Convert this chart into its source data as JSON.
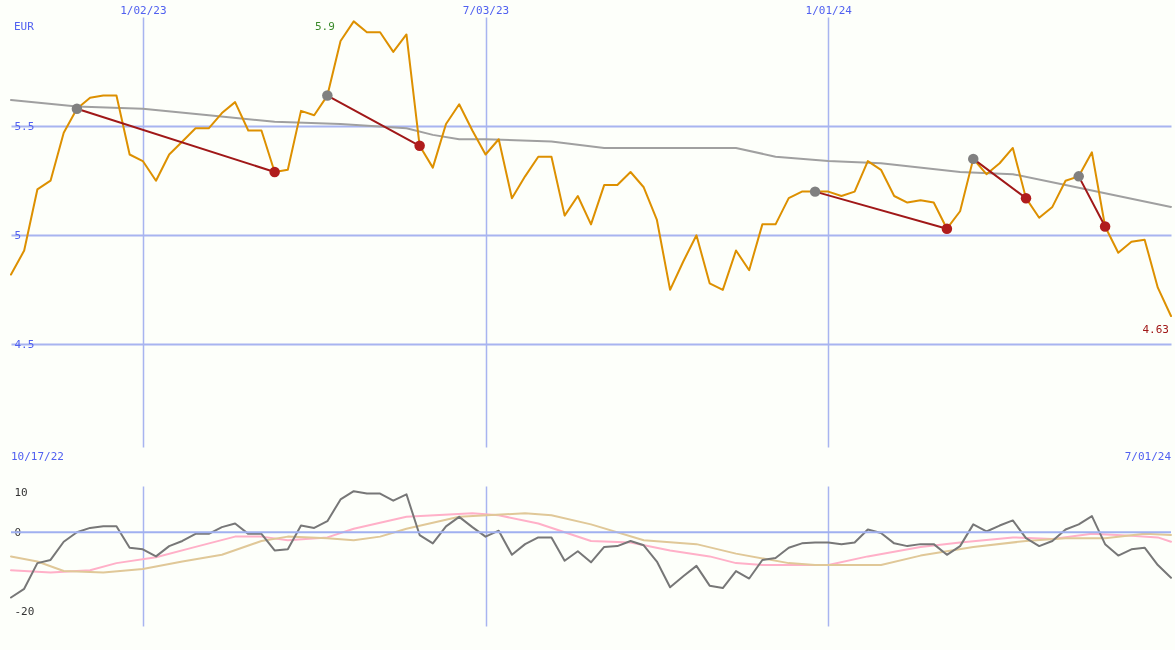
{
  "chart_data": [
    {
      "type": "line",
      "ylabel": "EUR",
      "xlim": [
        "2022-10-24",
        "2024-07-01"
      ],
      "ylim": [
        4.03,
        6.0
      ],
      "yticks": [
        4.5,
        5,
        5.5
      ],
      "xticks": [
        {
          "value": "2023-01-02",
          "label": "1/02/23"
        },
        {
          "value": "2023-07-03",
          "label": "7/03/23"
        },
        {
          "value": "2024-01-01",
          "label": "1/01/24"
        }
      ],
      "grid": true,
      "annotations": [
        "10/17/22",
        "7/01/24",
        "5.9",
        {
          "text": "4.63",
          "x": "2024-07-01",
          "y": 4.63
        }
      ],
      "x": [
        "2022-10-24",
        "2022-10-31",
        "2022-11-07",
        "2022-11-14",
        "2022-11-21",
        "2022-11-28",
        "2022-12-05",
        "2022-12-12",
        "2022-12-19",
        "2022-12-26",
        "2023-01-02",
        "2023-01-09",
        "2023-01-16",
        "2023-01-23",
        "2023-01-30",
        "2023-02-06",
        "2023-02-13",
        "2023-02-20",
        "2023-02-27",
        "2023-03-06",
        "2023-03-13",
        "2023-03-20",
        "2023-03-27",
        "2023-04-03",
        "2023-04-10",
        "2023-04-17",
        "2023-04-24",
        "2023-05-01",
        "2023-05-08",
        "2023-05-15",
        "2023-05-22",
        "2023-05-29",
        "2023-06-05",
        "2023-06-12",
        "2023-06-19",
        "2023-06-26",
        "2023-07-03",
        "2023-07-10",
        "2023-07-17",
        "2023-07-24",
        "2023-07-31",
        "2023-08-07",
        "2023-08-14",
        "2023-08-21",
        "2023-08-28",
        "2023-09-04",
        "2023-09-11",
        "2023-09-18",
        "2023-09-25",
        "2023-10-02",
        "2023-10-09",
        "2023-10-16",
        "2023-10-23",
        "2023-10-30",
        "2023-11-06",
        "2023-11-13",
        "2023-11-20",
        "2023-11-27",
        "2023-12-04",
        "2023-12-11",
        "2023-12-18",
        "2023-12-25",
        "2024-01-01",
        "2024-01-08",
        "2024-01-15",
        "2024-01-22",
        "2024-01-29",
        "2024-02-05",
        "2024-02-12",
        "2024-02-19",
        "2024-02-26",
        "2024-03-04",
        "2024-03-11",
        "2024-03-18",
        "2024-03-25",
        "2024-04-01",
        "2024-04-08",
        "2024-04-15",
        "2024-04-22",
        "2024-04-29",
        "2024-05-06",
        "2024-05-13",
        "2024-05-20",
        "2024-05-27",
        "2024-06-03",
        "2024-06-10",
        "2024-06-17",
        "2024-06-24",
        "2024-07-01"
      ],
      "series": [
        {
          "color": "#a0a0a0",
          "x": [
            "2022-10-24",
            "2022-11-28",
            "2023-01-02",
            "2023-02-06",
            "2023-03-13",
            "2023-04-17",
            "2023-05-22",
            "2023-06-05",
            "2023-06-19",
            "2023-07-03",
            "2023-08-07",
            "2023-09-04",
            "2023-10-09",
            "2023-11-13",
            "2023-12-04",
            "2024-01-01",
            "2024-01-29",
            "2024-03-11",
            "2024-04-08",
            "2024-05-06",
            "2024-06-03",
            "2024-07-01"
          ],
          "values": [
            5.62,
            5.59,
            5.58,
            5.55,
            5.52,
            5.51,
            5.49,
            5.46,
            5.44,
            5.44,
            5.43,
            5.4,
            5.4,
            5.4,
            5.36,
            5.34,
            5.33,
            5.29,
            5.28,
            5.23,
            5.18,
            5.13
          ]
        },
        {
          "color": "#dd9000",
          "values": [
            4.82,
            4.93,
            5.21,
            5.25,
            5.47,
            5.58,
            5.63,
            5.64,
            5.64,
            5.37,
            5.34,
            5.25,
            5.37,
            5.43,
            5.49,
            5.49,
            5.56,
            5.61,
            5.48,
            5.48,
            5.29,
            5.3,
            5.57,
            5.55,
            5.64,
            5.89,
            5.98,
            5.93,
            5.93,
            5.84,
            5.92,
            5.41,
            5.31,
            5.51,
            5.6,
            5.48,
            5.37,
            5.44,
            5.17,
            5.27,
            5.36,
            5.36,
            5.09,
            5.18,
            5.05,
            5.23,
            5.23,
            5.29,
            5.22,
            5.07,
            4.75,
            4.88,
            5.0,
            4.78,
            4.75,
            4.93,
            4.84,
            5.05,
            5.05,
            5.17,
            5.2,
            5.2,
            5.2,
            5.18,
            5.2,
            5.34,
            5.3,
            5.18,
            5.15,
            5.16,
            5.15,
            5.03,
            5.11,
            5.35,
            5.28,
            5.33,
            5.4,
            5.17,
            5.08,
            5.13,
            5.25,
            5.27,
            5.38,
            5.04,
            4.92,
            4.97,
            4.98,
            4.76,
            4.63
          ]
        },
        {
          "color": "#a01818",
          "x": [
            "2022-11-28",
            "2023-03-13"
          ],
          "values": [
            5.58,
            5.29
          ]
        },
        {
          "color": "#a01818",
          "x": [
            "2023-04-10",
            "2023-05-29"
          ],
          "values": [
            5.64,
            5.41
          ]
        },
        {
          "color": "#a01818",
          "x": [
            "2023-12-25",
            "2024-03-04"
          ],
          "values": [
            5.2,
            5.03
          ]
        },
        {
          "color": "#a01818",
          "x": [
            "2024-03-18",
            "2024-04-15"
          ],
          "values": [
            5.35,
            5.17
          ]
        },
        {
          "color": "#a01818",
          "x": [
            "2024-05-13",
            "2024-05-27"
          ],
          "values": [
            5.27,
            5.04
          ]
        },
        {
          "type": "scatter",
          "color": "#808080",
          "x": [
            "2022-11-28",
            "2023-04-10",
            "2023-12-25",
            "2024-03-18",
            "2024-05-13"
          ],
          "values": [
            5.58,
            5.64,
            5.2,
            5.35,
            5.27
          ]
        },
        {
          "type": "scatter",
          "color": "#b01c1c",
          "x": [
            "2023-03-13",
            "2023-05-29",
            "2024-03-04",
            "2024-04-15",
            "2024-05-27"
          ],
          "values": [
            5.29,
            5.41,
            5.03,
            5.17,
            5.04
          ]
        }
      ]
    },
    {
      "type": "line",
      "xlim": [
        "2022-10-24",
        "2024-07-01"
      ],
      "ylim": [
        -23.7,
        11.7
      ],
      "yticks": [
        -20,
        0,
        10
      ],
      "xticks": [
        {
          "value": "2023-01-02",
          "label": null
        },
        {
          "value": "2023-07-03",
          "label": null
        },
        {
          "value": "2024-01-01",
          "label": null
        }
      ],
      "grid": "x",
      "tick_labels": "y",
      "ref_lines": [
        {
          "axis": "y",
          "value": 0,
          "color": "#a0b0f0"
        }
      ],
      "x": [
        "2022-10-24",
        "2022-10-31",
        "2022-11-07",
        "2022-11-14",
        "2022-11-21",
        "2022-11-28",
        "2022-12-05",
        "2022-12-12",
        "2022-12-19",
        "2022-12-26",
        "2023-01-02",
        "2023-01-09",
        "2023-01-16",
        "2023-01-23",
        "2023-01-30",
        "2023-02-06",
        "2023-02-13",
        "2023-02-20",
        "2023-02-27",
        "2023-03-06",
        "2023-03-13",
        "2023-03-20",
        "2023-03-27",
        "2023-04-03",
        "2023-04-10",
        "2023-04-17",
        "2023-04-24",
        "2023-05-01",
        "2023-05-08",
        "2023-05-15",
        "2023-05-22",
        "2023-05-29",
        "2023-06-05",
        "2023-06-12",
        "2023-06-19",
        "2023-06-26",
        "2023-07-03",
        "2023-07-10",
        "2023-07-17",
        "2023-07-24",
        "2023-07-31",
        "2023-08-07",
        "2023-08-14",
        "2023-08-21",
        "2023-08-28",
        "2023-09-04",
        "2023-09-11",
        "2023-09-18",
        "2023-09-25",
        "2023-10-02",
        "2023-10-09",
        "2023-10-16",
        "2023-10-23",
        "2023-10-30",
        "2023-11-06",
        "2023-11-13",
        "2023-11-20",
        "2023-11-27",
        "2023-12-04",
        "2023-12-11",
        "2023-12-18",
        "2023-12-25",
        "2024-01-01",
        "2024-01-08",
        "2024-01-15",
        "2024-01-22",
        "2024-01-29",
        "2024-02-05",
        "2024-02-12",
        "2024-02-19",
        "2024-02-26",
        "2024-03-04",
        "2024-03-11",
        "2024-03-18",
        "2024-03-25",
        "2024-04-01",
        "2024-04-08",
        "2024-04-15",
        "2024-04-22",
        "2024-04-29",
        "2024-05-06",
        "2024-05-13",
        "2024-05-20",
        "2024-05-27",
        "2024-06-03",
        "2024-06-10",
        "2024-06-17",
        "2024-06-24",
        "2024-07-01"
      ],
      "series": [
        {
          "color": "#ffb0c8",
          "x": [
            "2022-10-24",
            "2022-11-14",
            "2022-12-05",
            "2022-12-19",
            "2023-01-09",
            "2023-01-30",
            "2023-02-20",
            "2023-03-06",
            "2023-03-20",
            "2023-04-10",
            "2023-04-24",
            "2023-05-08",
            "2023-05-22",
            "2023-06-26",
            "2023-07-10",
            "2023-07-31",
            "2023-08-14",
            "2023-08-28",
            "2023-09-18",
            "2023-10-09",
            "2023-10-30",
            "2023-11-13",
            "2023-11-27",
            "2023-12-11",
            "2024-01-01",
            "2024-01-22",
            "2024-02-19",
            "2024-03-11",
            "2024-04-08",
            "2024-04-29",
            "2024-05-20",
            "2024-06-10",
            "2024-06-24",
            "2024-07-01"
          ],
          "values": [
            -9.6,
            -10.2,
            -9.6,
            -7.8,
            -6.3,
            -3.7,
            -1.1,
            -1.1,
            -2.0,
            -1.3,
            0.9,
            2.4,
            3.9,
            4.8,
            4.3,
            2.2,
            0,
            -2.2,
            -2.6,
            -4.6,
            -6.1,
            -7.8,
            -8.3,
            -8.3,
            -8.3,
            -6.1,
            -3.7,
            -2.6,
            -1.3,
            -1.7,
            -0.4,
            -0.9,
            -1.3,
            -2.4
          ]
        },
        {
          "color": "#e0c898",
          "x": [
            "2022-10-24",
            "2022-11-07",
            "2022-11-21",
            "2022-12-12",
            "2023-01-02",
            "2023-01-23",
            "2023-02-13",
            "2023-03-06",
            "2023-03-20",
            "2023-04-10",
            "2023-04-24",
            "2023-05-08",
            "2023-05-22",
            "2023-06-19",
            "2023-07-24",
            "2023-08-07",
            "2023-08-28",
            "2023-09-25",
            "2023-10-23",
            "2023-11-13",
            "2023-12-11",
            "2023-12-25",
            "2024-01-29",
            "2024-02-19",
            "2024-03-18",
            "2024-04-15",
            "2024-05-06",
            "2024-05-27",
            "2024-06-17",
            "2024-07-01"
          ],
          "values": [
            -6.1,
            -7.4,
            -9.8,
            -10.2,
            -9.3,
            -7.4,
            -5.7,
            -2.2,
            -1.1,
            -1.5,
            -2.0,
            -1.1,
            0.9,
            3.9,
            4.8,
            4.3,
            2.0,
            -2.0,
            -3.0,
            -5.4,
            -7.8,
            -8.3,
            -8.3,
            -5.9,
            -3.7,
            -2.2,
            -1.5,
            -1.5,
            -0.4,
            -0.7
          ]
        },
        {
          "color": "#777777",
          "values": [
            -16.5,
            -14.3,
            -7.8,
            -7.0,
            -2.4,
            0,
            1.1,
            1.5,
            1.5,
            -3.9,
            -4.3,
            -6.1,
            -3.5,
            -2.2,
            -0.4,
            -0.4,
            1.3,
            2.2,
            -0.4,
            -0.4,
            -4.6,
            -4.3,
            1.7,
            1.1,
            2.8,
            8.3,
            10.4,
            9.8,
            9.8,
            8.0,
            9.6,
            -0.7,
            -2.8,
            1.5,
            3.9,
            1.3,
            -1.1,
            0.4,
            -5.7,
            -3.0,
            -1.3,
            -1.3,
            -7.2,
            -4.8,
            -7.6,
            -3.7,
            -3.5,
            -2.2,
            -3.3,
            -7.4,
            -13.9,
            -11.1,
            -8.5,
            -13.5,
            -14.1,
            -9.8,
            -11.7,
            -7.0,
            -6.5,
            -3.9,
            -2.8,
            -2.6,
            -2.6,
            -3.0,
            -2.6,
            0.7,
            -0.2,
            -2.8,
            -3.5,
            -3.0,
            -3.0,
            -5.7,
            -3.5,
            2.0,
            0.2,
            1.7,
            3.0,
            -1.5,
            -3.5,
            -2.2,
            0.7,
            2.0,
            4.1,
            -3.0,
            -5.9,
            -4.3,
            -3.9,
            -8.3,
            -11.5
          ]
        }
      ]
    }
  ]
}
